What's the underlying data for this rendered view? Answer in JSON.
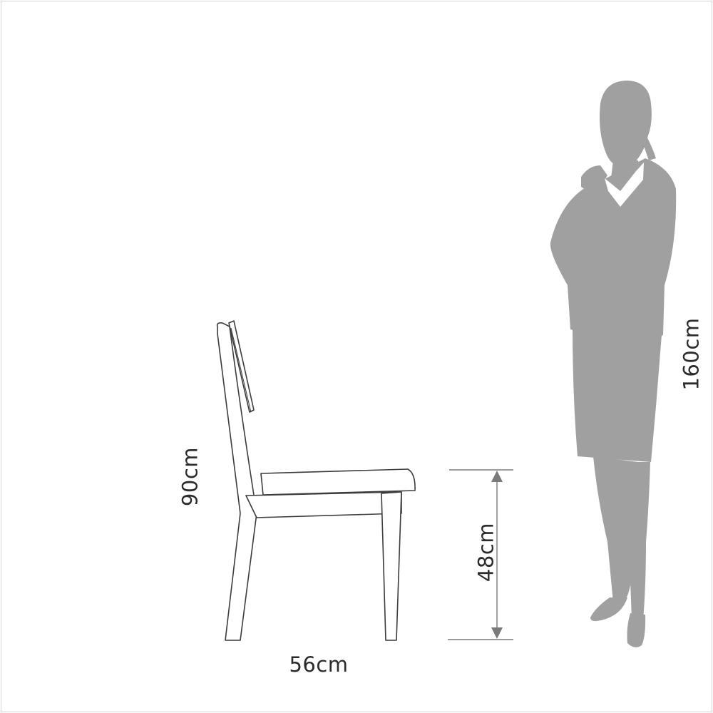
{
  "diagram": {
    "labels": {
      "chair_height": "90cm",
      "seat_height": "48cm",
      "chair_depth": "56cm",
      "person_height": "160cm"
    },
    "colors": {
      "silhouette": "#a0a0a0",
      "chair_stroke": "#3c3c3c",
      "dimension_line": "#7a7a7a",
      "text": "#2b2b2b"
    }
  }
}
